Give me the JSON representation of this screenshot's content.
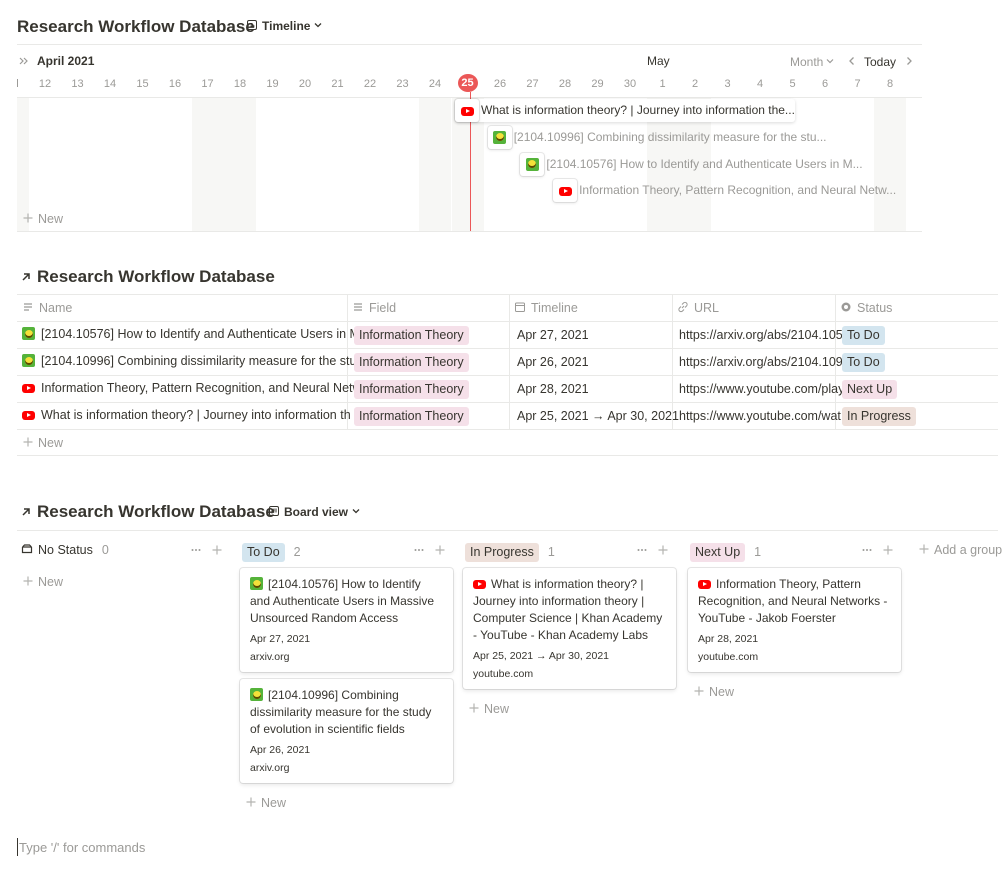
{
  "timeline": {
    "title": "Research Workflow Database",
    "view": "Timeline",
    "month_left": "April 2021",
    "month_right": "May",
    "scale": "Month",
    "today": "Today",
    "days": [
      12,
      13,
      14,
      15,
      16,
      17,
      18,
      19,
      20,
      21,
      22,
      23,
      24,
      25,
      26,
      27,
      28,
      29,
      30,
      1,
      2,
      3,
      4,
      5,
      6,
      7,
      8
    ],
    "items": [
      "What is information theory? | Journey into information the...",
      "[2104.10996] Combining dissimilarity measure for the stu...",
      "[2104.10576] How to Identify and Authenticate Users in M...",
      "Information Theory, Pattern Recognition, and Neural Netw..."
    ],
    "new": "New"
  },
  "table": {
    "title": "Research Workflow Database",
    "columns": [
      "Name",
      "Field",
      "Timeline",
      "URL",
      "Status"
    ],
    "rows": [
      {
        "name": "[2104.10576] How to Identify and Authenticate Users in M",
        "field": {
          "text": "Information Theory",
          "color": "#f5e0e9"
        },
        "timeline": "Apr 27, 2021",
        "url": "https://arxiv.org/abs/2104.105",
        "status": {
          "text": "To Do",
          "color": "#d3e5ef"
        }
      },
      {
        "name": "[2104.10996] Combining dissimilarity measure for the stu",
        "field": {
          "text": "Information Theory",
          "color": "#f5e0e9"
        },
        "timeline": "Apr 26, 2021",
        "url": "https://arxiv.org/abs/2104.109",
        "status": {
          "text": "To Do",
          "color": "#d3e5ef"
        }
      },
      {
        "name": "Information Theory, Pattern Recognition, and Neural Netw",
        "field": {
          "text": "Information Theory",
          "color": "#f5e0e9"
        },
        "timeline": "Apr 28, 2021",
        "url": "https://www.youtube.com/play",
        "status": {
          "text": "Next Up",
          "color": "#f5e0e9"
        }
      },
      {
        "name": "What is information theory? | Journey into information th",
        "field": {
          "text": "Information Theory",
          "color": "#f5e0e9"
        },
        "timeline": "Apr 25, 2021 → Apr 30, 2021",
        "url": "https://www.youtube.com/wat",
        "status": {
          "text": "In Progress",
          "color": "#eee0da"
        }
      }
    ],
    "new": "New"
  },
  "board": {
    "title": "Research Workflow Database",
    "view": "Board view",
    "groups": [
      {
        "name": "No Status",
        "count": 0,
        "cards": []
      },
      {
        "name": "To Do",
        "color": "#d3e5ef",
        "count": 2,
        "cards": [
          {
            "title": "[2104.10576] How to Identify and Authenticate Users in Massive Unsourced Random Access",
            "date": "Apr 27, 2021",
            "source": "arxiv.org"
          },
          {
            "title": "[2104.10996] Combining dissimilarity measure for the study of evolution in scientific fields",
            "date": "Apr 26, 2021",
            "source": "arxiv.org"
          }
        ]
      },
      {
        "name": "In Progress",
        "color": "#eee0da",
        "count": 1,
        "cards": [
          {
            "title": "What is information theory? | Journey into information theory | Computer Science | Khan Academy - YouTube - Khan Academy Labs",
            "date": "Apr 25, 2021 → Apr 30, 2021",
            "source": "youtube.com"
          }
        ]
      },
      {
        "name": "Next Up",
        "color": "#f5e0e9",
        "count": 1,
        "cards": [
          {
            "title": "Information Theory, Pattern Recognition, and Neural Networks - YouTube - Jakob Foerster",
            "date": "Apr 28, 2021",
            "source": "youtube.com"
          }
        ]
      }
    ],
    "new": "New",
    "add_group": "Add a group"
  },
  "command_hint": "Type '/' for commands"
}
